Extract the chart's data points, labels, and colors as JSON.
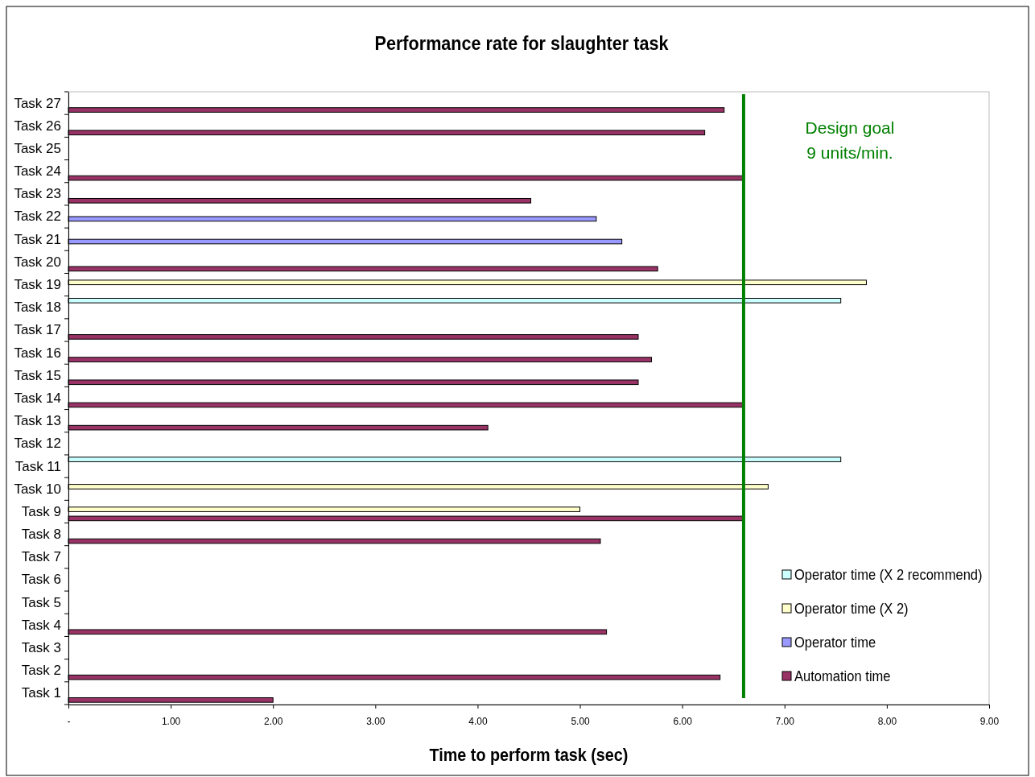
{
  "chart_data": {
    "type": "bar",
    "orientation": "horizontal",
    "title": "Performance rate for slaughter task",
    "xlabel": "Time to perform task (sec)",
    "categories": [
      "Task 27",
      "Task 26",
      "Task 25",
      "Task 24",
      "Task 23",
      "Task 22",
      "Task 21",
      "Task 20",
      "Task 19",
      "Task 18",
      "Task 17",
      "Task 16",
      "Task 15",
      "Task 14",
      "Task 13",
      "Task 12",
      "Task 11",
      "Task 10",
      "Task 9",
      "Task 8",
      "Task 7",
      "Task 6",
      "Task 5",
      "Task 4",
      "Task 3",
      "Task 2",
      "Task 1"
    ],
    "series": [
      {
        "name": "Automation time",
        "color": "#993366",
        "values": [
          6.41,
          6.22,
          null,
          6.6,
          4.52,
          null,
          null,
          5.76,
          null,
          null,
          5.57,
          5.7,
          5.57,
          6.6,
          4.1,
          null,
          null,
          null,
          6.6,
          5.2,
          null,
          null,
          null,
          5.26,
          null,
          6.37,
          2.0
        ]
      },
      {
        "name": "Operator time",
        "color": "#9999ff",
        "values": [
          null,
          null,
          null,
          null,
          null,
          5.16,
          5.41,
          null,
          null,
          null,
          null,
          null,
          null,
          null,
          null,
          null,
          null,
          null,
          null,
          null,
          null,
          null,
          null,
          null,
          null,
          null,
          null
        ]
      },
      {
        "name": "Operator time (X 2)",
        "color": "#ffffcc",
        "values": [
          null,
          null,
          null,
          null,
          null,
          null,
          null,
          null,
          7.8,
          null,
          null,
          null,
          null,
          null,
          null,
          null,
          null,
          6.84,
          5.0,
          null,
          null,
          null,
          null,
          null,
          null,
          null,
          null
        ]
      },
      {
        "name": "Operator time (X 2 recommend)",
        "color": "#ccffff",
        "values": [
          null,
          null,
          null,
          null,
          null,
          null,
          null,
          null,
          null,
          7.55,
          null,
          null,
          null,
          null,
          null,
          null,
          7.55,
          null,
          null,
          null,
          null,
          null,
          null,
          null,
          null,
          null,
          null
        ]
      }
    ],
    "xlim": [
      0,
      9
    ],
    "xticks": [
      {
        "value": 0,
        "label": "-"
      },
      {
        "value": 1,
        "label": "1.00"
      },
      {
        "value": 2,
        "label": "2.00"
      },
      {
        "value": 3,
        "label": "3.00"
      },
      {
        "value": 4,
        "label": "4.00"
      },
      {
        "value": 5,
        "label": "5.00"
      },
      {
        "value": 6,
        "label": "6.00"
      },
      {
        "value": 7,
        "label": "7.00"
      },
      {
        "value": 8,
        "label": "8.00"
      },
      {
        "value": 9,
        "label": "9.00"
      }
    ],
    "ref_lines": [
      {
        "axis": "x",
        "value": 6.6,
        "label": "Design goal\n9 units/min.",
        "color": "#008000"
      }
    ],
    "legend": "bottom right",
    "grid": false
  }
}
